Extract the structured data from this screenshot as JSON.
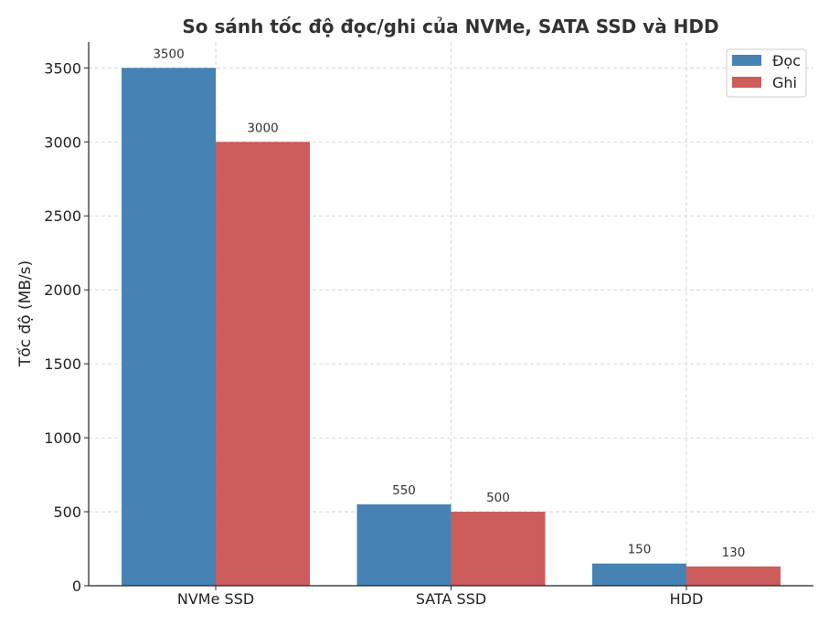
{
  "chart_data": {
    "type": "bar",
    "title": "So sánh tốc độ đọc/ghi của NVMe, SATA SSD và HDD",
    "xlabel": "",
    "ylabel": "Tốc độ (MB/s)",
    "categories": [
      "NVMe SSD",
      "SATA SSD",
      "HDD"
    ],
    "series": [
      {
        "name": "Đọc",
        "color": "#4682B4",
        "values": [
          3500,
          550,
          150
        ]
      },
      {
        "name": "Ghi",
        "color": "#CD5C5C",
        "values": [
          3000,
          500,
          130
        ]
      }
    ],
    "ylim": [
      0,
      3675
    ],
    "yticks": [
      0,
      500,
      1000,
      1500,
      2000,
      2500,
      3000,
      3500
    ],
    "grid": true,
    "legend_position": "top-right"
  }
}
